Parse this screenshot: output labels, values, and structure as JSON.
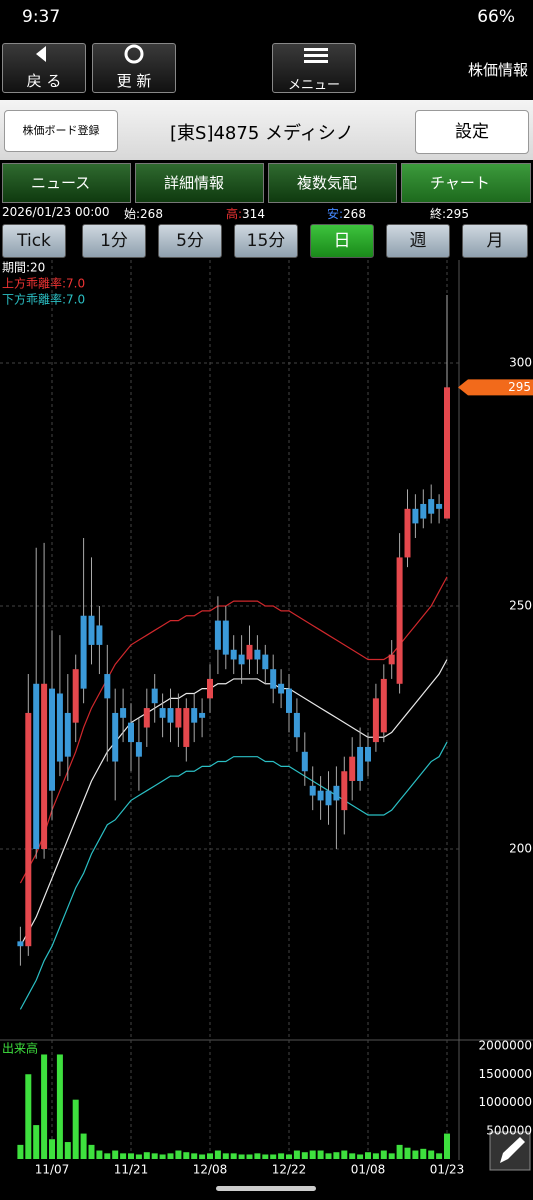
{
  "ui": {
    "status": {
      "time": "9:37",
      "battery": "66%"
    },
    "toolbar": {
      "back": "戻 る",
      "refresh": "更 新",
      "menu": "メニュー",
      "title": "株価情報"
    },
    "header": {
      "board": "株価ボード登録",
      "stock": "[東S]4875 メディシノ",
      "settings": "設定"
    },
    "tabs": [
      "ニュース",
      "詳細情報",
      "複数気配",
      "チャート"
    ],
    "info": {
      "date": "2026/01/23 00:00",
      "open": "始:268",
      "high": "高:314",
      "low": "安:268",
      "close": "終:295"
    },
    "periods": [
      "Tick",
      "1分",
      "5分",
      "15分",
      "日",
      "週",
      "月"
    ]
  },
  "chart_data": [
    {
      "type": "candlestick",
      "annotations": [
        "期間:20",
        "上方乖離率:7.0",
        "下方乖離率:7.0"
      ],
      "categories": [
        null,
        null,
        null,
        null,
        "11/07",
        null,
        null,
        null,
        null,
        null,
        null,
        null,
        null,
        null,
        "11/21",
        null,
        null,
        null,
        null,
        null,
        null,
        null,
        null,
        null,
        "12/08",
        null,
        null,
        null,
        null,
        null,
        null,
        null,
        null,
        null,
        "12/22",
        null,
        null,
        null,
        null,
        null,
        null,
        null,
        null,
        null,
        "01/08",
        null,
        null,
        null,
        null,
        null,
        null,
        null,
        null,
        null,
        "01/23"
      ],
      "open": [
        181,
        180,
        234,
        200,
        233,
        232,
        228,
        226,
        248,
        248,
        246,
        236,
        228,
        229,
        226,
        222,
        225,
        233,
        229,
        229,
        225,
        221,
        229,
        228,
        231,
        247,
        247,
        241,
        240,
        239,
        241,
        240,
        237,
        234,
        233,
        228,
        220,
        213,
        212,
        212,
        213,
        208,
        214,
        221,
        221,
        222,
        224,
        238,
        234,
        260,
        270,
        271,
        272,
        271,
        268
      ],
      "high": [
        184,
        236,
        262,
        263,
        245,
        244,
        236,
        240,
        264,
        260,
        250,
        242,
        233,
        233,
        230,
        227,
        233,
        236,
        232,
        233,
        232,
        231,
        232,
        231,
        238,
        252,
        250,
        244,
        244,
        246,
        244,
        242,
        240,
        237,
        236,
        231,
        224,
        217,
        215,
        216,
        217,
        219,
        223,
        225,
        224,
        234,
        238,
        243,
        265,
        274,
        273,
        274,
        275,
        273,
        314
      ],
      "low": [
        176,
        178,
        198,
        198,
        206,
        215,
        214,
        222,
        230,
        238,
        236,
        218,
        210,
        222,
        216,
        212,
        221,
        226,
        223,
        222,
        221,
        218,
        222,
        223,
        228,
        236,
        237,
        236,
        234,
        236,
        236,
        234,
        230,
        229,
        224,
        220,
        213,
        208,
        206,
        205,
        200,
        203,
        210,
        212,
        215,
        220,
        222,
        235,
        232,
        258,
        264,
        266,
        267,
        267,
        268
      ],
      "close": [
        180,
        228,
        200,
        234,
        212,
        218,
        219,
        237,
        233,
        242,
        242,
        231,
        218,
        227,
        222,
        219,
        229,
        230,
        227,
        226,
        229,
        229,
        226,
        227,
        235,
        241,
        240,
        239,
        238,
        242,
        239,
        237,
        233,
        232,
        228,
        223,
        216,
        211,
        210,
        209,
        210,
        216,
        219,
        214,
        218,
        231,
        235,
        240,
        260,
        270,
        267,
        268,
        269,
        270,
        295
      ],
      "lines": [
        {
          "color": "#e8e8e8",
          "values": [
            180,
            183,
            186,
            190,
            194,
            198,
            202,
            206,
            210,
            214,
            217,
            220,
            222,
            224,
            226,
            227,
            228,
            229,
            230,
            231,
            231,
            232,
            232,
            233,
            233,
            234,
            234,
            235,
            235,
            235,
            235,
            234,
            234,
            233,
            233,
            232,
            231,
            230,
            229,
            228,
            227,
            226,
            225,
            224,
            223,
            223,
            223,
            224,
            226,
            228,
            230,
            232,
            234,
            236,
            239
          ]
        },
        {
          "color": "#d0282c",
          "values": [
            193,
            196,
            199,
            203,
            208,
            212,
            216,
            220,
            225,
            229,
            232,
            235,
            238,
            240,
            242,
            243,
            244,
            245,
            246,
            247,
            247,
            248,
            248,
            249,
            249,
            250,
            250,
            251,
            251,
            251,
            251,
            250,
            250,
            249,
            249,
            248,
            247,
            246,
            245,
            244,
            243,
            242,
            241,
            240,
            239,
            239,
            239,
            240,
            242,
            244,
            246,
            248,
            250,
            253,
            256
          ]
        },
        {
          "color": "#2bbfc4",
          "values": [
            167,
            170,
            173,
            177,
            180,
            184,
            188,
            192,
            195,
            199,
            202,
            205,
            206,
            208,
            210,
            211,
            212,
            213,
            214,
            215,
            215,
            216,
            216,
            217,
            217,
            218,
            218,
            219,
            219,
            219,
            219,
            218,
            218,
            217,
            217,
            216,
            215,
            214,
            213,
            212,
            211,
            210,
            209,
            208,
            207,
            207,
            207,
            208,
            210,
            212,
            214,
            216,
            218,
            219,
            222
          ]
        }
      ],
      "up_color": "#e5484d",
      "down_color": "#3b9ad9",
      "ylim": [
        160.7,
        321.2
      ],
      "yticks": [
        200,
        250,
        300
      ],
      "grid": true
    },
    {
      "type": "bar",
      "label": "出来高",
      "color": "#3ee03e",
      "values": [
        250000,
        1500000,
        600000,
        1850000,
        350000,
        1850000,
        300000,
        1050000,
        450000,
        250000,
        150000,
        100000,
        150000,
        100000,
        100000,
        80000,
        120000,
        100000,
        80000,
        100000,
        150000,
        120000,
        100000,
        80000,
        100000,
        150000,
        100000,
        100000,
        80000,
        80000,
        100000,
        80000,
        80000,
        100000,
        80000,
        150000,
        120000,
        150000,
        150000,
        100000,
        120000,
        150000,
        100000,
        80000,
        120000,
        100000,
        150000,
        100000,
        250000,
        200000,
        150000,
        180000,
        150000,
        100000,
        450000
      ],
      "ylim": [
        0,
        2000000
      ],
      "yticks": [
        500000,
        1000000,
        1500000,
        2000000
      ]
    }
  ]
}
